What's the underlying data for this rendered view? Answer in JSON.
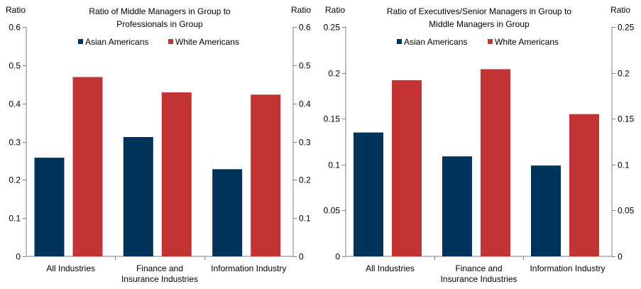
{
  "colors": {
    "asian": "#003359",
    "white": "#c23333",
    "axis": "#808080"
  },
  "chart_data": [
    {
      "type": "bar",
      "title": "Ratio of Middle Managers in Group to Professionals in Group",
      "title_lines": [
        "Ratio of Middle Managers in Group to",
        "Professionals in Group"
      ],
      "ylabel_left": "Ratio",
      "ylabel_right": "Ratio",
      "ylim": [
        0,
        0.6
      ],
      "yticks": [
        0,
        0.1,
        0.2,
        0.3,
        0.4,
        0.5,
        0.6
      ],
      "ytick_labels": [
        "0",
        "0.1",
        "0.2",
        "0.3",
        "0.4",
        "0.5",
        "0.6"
      ],
      "categories": [
        "All Industries",
        "Finance and Insurance Industries",
        "Information Industry"
      ],
      "category_lines": [
        [
          "All Industries"
        ],
        [
          "Finance and",
          "Insurance Industries"
        ],
        [
          "Information Industry"
        ]
      ],
      "series": [
        {
          "name": "Asian Americans",
          "values": [
            0.258,
            0.312,
            0.228
          ]
        },
        {
          "name": "White Americans",
          "values": [
            0.469,
            0.429,
            0.423
          ]
        }
      ],
      "legend": "top-center"
    },
    {
      "type": "bar",
      "title": "Ratio of Executives/Senior Managers in Group to Middle Managers in Group",
      "title_lines": [
        "Ratio of Executives/Senior Managers in Group to",
        "Middle Managers in Group"
      ],
      "ylabel_left": "Ratio",
      "ylabel_right": "Ratio",
      "ylim": [
        0,
        0.25
      ],
      "yticks": [
        0,
        0.05,
        0.1,
        0.15,
        0.2,
        0.25
      ],
      "ytick_labels": [
        "0",
        "0.05",
        "0.1",
        "0.15",
        "0.2",
        "0.25"
      ],
      "categories": [
        "All Industries",
        "Finance and Insurance Industries",
        "Information Industry"
      ],
      "category_lines": [
        [
          "All Industries"
        ],
        [
          "Finance and",
          "Insurance Industries"
        ],
        [
          "Information Industry"
        ]
      ],
      "series": [
        {
          "name": "Asian Americans",
          "values": [
            0.135,
            0.109,
            0.099
          ]
        },
        {
          "name": "White Americans",
          "values": [
            0.192,
            0.204,
            0.155
          ]
        }
      ],
      "legend": "top-center"
    }
  ]
}
